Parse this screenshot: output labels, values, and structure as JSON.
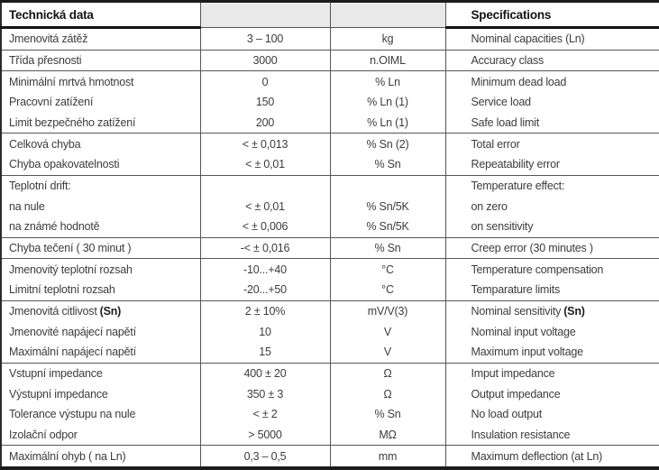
{
  "table": {
    "header": {
      "cz": "Technická data",
      "en": "Specifications"
    },
    "rows": [
      {
        "cz": "Jmenovitá zátěž",
        "value": "3 – 100",
        "unit": "kg",
        "en": "Nominal capacities (Ln)"
      },
      {
        "cz": "Třída přesnosti",
        "value": "3000",
        "unit": "n.OIML",
        "en": "Accuracy class"
      },
      {
        "cz": "Minimální mrtvá hmotnost",
        "value": "0",
        "unit": "% Ln",
        "en": "Minimum dead load"
      },
      {
        "cz": "Pracovní zatížení",
        "value": "150",
        "unit": "% Ln (1)",
        "en": "Service load"
      },
      {
        "cz": "Limit bezpečného zatížení",
        "value": "200",
        "unit": "% Ln (1)",
        "en": "Safe load limit"
      },
      {
        "cz": "Celková chyba",
        "value": "< ± 0,013",
        "unit": "% Sn (2)",
        "en": "Total error"
      },
      {
        "cz": "Chyba opakovatelnosti",
        "value": "< ± 0,01",
        "unit": "% Sn",
        "en": "Repeatability error"
      },
      {
        "cz": "Teplotní drift:",
        "value": "",
        "unit": "",
        "en": "Temperature effect:"
      },
      {
        "cz": "na nule",
        "value": "< ± 0,01",
        "unit": "% Sn/5K",
        "en": "on zero"
      },
      {
        "cz": "na známé hodnotě",
        "value": "< ± 0,006",
        "unit": "% Sn/5K",
        "en": "on sensitivity"
      },
      {
        "cz": "Chyba tečení ( 30 minut )",
        "value": "-< ± 0,016",
        "unit": "% Sn",
        "en": "Creep error (30 minutes )"
      },
      {
        "cz": "Jmenovitý teplotní rozsah",
        "value": "-10...+40",
        "unit": "°C",
        "en": "Temperature compensation"
      },
      {
        "cz": "Limitní teplotní rozsah",
        "value": "-20...+50",
        "unit": "°C",
        "en": "Temparature limits"
      },
      {
        "cz": "Jmenovitá citlivost",
        "cz_bold": "(Sn)",
        "value": "2 ± 10%",
        "unit": "mV/V(3)",
        "en": "Nominal sensitivity",
        "en_bold": "(Sn)"
      },
      {
        "cz": "Jmenovité napájecí napětí",
        "value": "10",
        "unit": "V",
        "en": "Nominal input voltage"
      },
      {
        "cz": "Maximální napájecí napětí",
        "value": "15",
        "unit": "V",
        "en": "Maximum input voltage"
      },
      {
        "cz": "Vstupní impedance",
        "value": "400 ± 20",
        "unit": "Ω",
        "en": "Imput impedance"
      },
      {
        "cz": "Výstupní impedance",
        "value": "350 ± 3",
        "unit": "Ω",
        "en": "Output impedance"
      },
      {
        "cz": "Tolerance výstupu na nule",
        "value": "< ± 2",
        "unit": "% Sn",
        "en": "No load output"
      },
      {
        "cz": "Izolační odpor",
        "value": "> 5000",
        "unit": "MΩ",
        "en": "Insulation resistance"
      },
      {
        "cz": "Maximální ohyb ( na Ln)",
        "value": "0,3 – 0,5",
        "unit": "mm",
        "en": "Maximum deflection (at Ln)"
      }
    ]
  }
}
